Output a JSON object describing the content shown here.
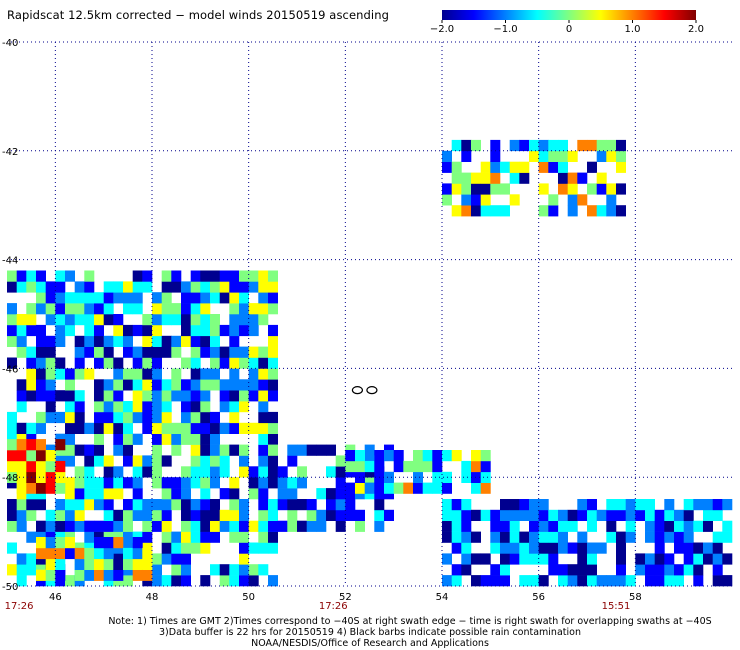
{
  "title": "Rapidscat 12.5km corrected − model winds 20150519 ascending",
  "colorbar": {
    "min": -2.0,
    "max": 2.0,
    "tick_labels": [
      "−2.0",
      "−1.0",
      "0",
      "1.0",
      "2.0"
    ],
    "tick_values": [
      -2.0,
      -1.0,
      0,
      1.0,
      2.0
    ],
    "colors": [
      "#00008f",
      "#0000ff",
      "#0080ff",
      "#00ffff",
      "#80ff80",
      "#ffff00",
      "#ff8000",
      "#ff0000",
      "#800000"
    ]
  },
  "chart_data": {
    "type": "heatmap",
    "title": "Rapidscat 12.5km corrected − model winds 20150519 ascending",
    "xlim": [
      45,
      60
    ],
    "ylim": [
      -50,
      -40
    ],
    "grid": true,
    "x_ticks": [
      46,
      48,
      50,
      52,
      54,
      56,
      58
    ],
    "x_tick_labels": [
      "46",
      "48",
      "50",
      "52",
      "54",
      "56",
      "58"
    ],
    "y_ticks": [
      -40,
      -42,
      -44,
      -46,
      -48,
      -50
    ],
    "y_tick_labels": [
      "-40",
      "-42",
      "-44",
      "-46",
      "-48",
      "-50"
    ],
    "time_labels": [
      {
        "lon": 45.25,
        "text": "17:26"
      },
      {
        "lon": 51.75,
        "text": "17:26"
      },
      {
        "lon": 57.6,
        "text": "15:51"
      }
    ],
    "regions": [
      {
        "name": "west",
        "lon": [
          45.0,
          50.6
        ],
        "lat": [
          -50.0,
          -44.2
        ],
        "density": 0.78,
        "mean": -0.7,
        "spread": 0.75
      },
      {
        "name": "west-hot",
        "lon": [
          45.0,
          46.2
        ],
        "lat": [
          -48.3,
          -47.3
        ],
        "density": 0.85,
        "mean": 0.9,
        "spread": 0.7
      },
      {
        "name": "south-west",
        "lon": [
          45.6,
          48.0
        ],
        "lat": [
          -49.9,
          -49.1
        ],
        "density": 0.8,
        "mean": -0.2,
        "spread": 0.9
      },
      {
        "name": "central-strip",
        "lon": [
          50.4,
          53.0
        ],
        "lat": [
          -49.0,
          -47.4
        ],
        "density": 0.55,
        "mean": -0.9,
        "spread": 0.7
      },
      {
        "name": "central-east",
        "lon": [
          52.0,
          55.0
        ],
        "lat": [
          -48.3,
          -47.6
        ],
        "density": 0.75,
        "mean": -0.4,
        "spread": 0.75
      },
      {
        "name": "north-east",
        "lon": [
          54.0,
          57.8
        ],
        "lat": [
          -43.2,
          -41.8
        ],
        "density": 0.55,
        "mean": -0.5,
        "spread": 0.9
      },
      {
        "name": "south-east",
        "lon": [
          54.0,
          60.0
        ],
        "lat": [
          -50.0,
          -48.4
        ],
        "density": 0.7,
        "mean": -1.1,
        "spread": 0.55
      }
    ],
    "rain_contours": [
      {
        "lon": 52.25,
        "lat": -46.4
      },
      {
        "lon": 52.55,
        "lat": -46.4
      }
    ]
  },
  "footer": {
    "line1": "Note: 1) Times are GMT 2)Times correspond to −40S at right swath edge − time is right swath for overlapping swaths at −40S",
    "line2": "3)Data buffer is 22 hrs for 20150519 4) Black barbs indicate possible rain contamination",
    "line3": "NOAA/NESDIS/Office of Research and Applications"
  }
}
